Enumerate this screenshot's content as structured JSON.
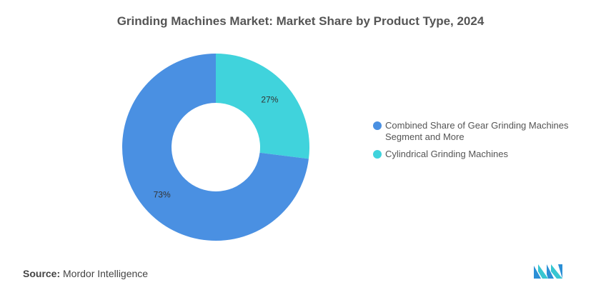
{
  "header": {
    "title": "Grinding Machines Market: Market Share by Product Type, 2024"
  },
  "chart_data": {
    "type": "pie",
    "donut": true,
    "title": "Grinding Machines Market: Market Share by Product Type, 2024",
    "categories": [
      "Combined Share of Gear Grinding Machines Segment and More",
      "Cylindrical Grinding Machines"
    ],
    "values": [
      73,
      27
    ],
    "value_labels": [
      "73%",
      "27%"
    ],
    "colors": [
      "#4a90e2",
      "#40d3dc"
    ],
    "legend_placement": "right"
  },
  "legend": {
    "items": [
      {
        "label": "Combined Share of Gear Grinding Machines Segment and More",
        "color": "#4a90e2"
      },
      {
        "label": "Cylindrical Grinding Machines",
        "color": "#40d3dc"
      }
    ]
  },
  "footer": {
    "source_key": "Source:",
    "source_value": "Mordor Intelligence",
    "logo_icon": "mordor-intelligence-logo-icon"
  }
}
